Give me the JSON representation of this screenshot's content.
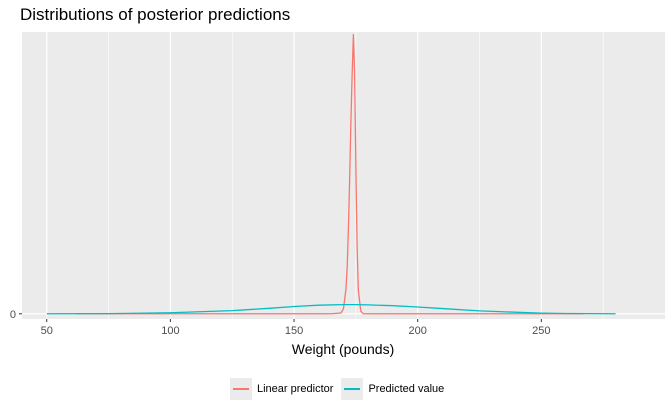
{
  "chart_data": {
    "type": "line",
    "title": "Distributions of posterior predictions",
    "xlabel": "Weight (pounds)",
    "ylabel": "",
    "xlim": [
      40,
      300
    ],
    "ylim": [
      -0.002,
      0.108
    ],
    "x_ticks": [
      50,
      100,
      150,
      200,
      250
    ],
    "y_ticks": [
      0
    ],
    "y_tick_labels": [
      "0"
    ],
    "grid": true,
    "legend_position": "bottom",
    "series": [
      {
        "name": "Linear predictor",
        "color": "#F8766D",
        "x": [
          62,
          150,
          165,
          169,
          170,
          171,
          171.5,
          172,
          172.5,
          173,
          173.5,
          174,
          174.5,
          175,
          175.5,
          176,
          177,
          178,
          185,
          267
        ],
        "values": [
          0,
          0,
          0,
          0.0003,
          0.002,
          0.0095,
          0.018,
          0.033,
          0.052,
          0.074,
          0.092,
          0.107,
          0.092,
          0.056,
          0.026,
          0.009,
          0.001,
          0,
          0,
          0
        ]
      },
      {
        "name": "Predicted value",
        "color": "#00BFC4",
        "x": [
          50,
          75,
          100,
          125,
          140,
          150,
          160,
          170,
          175,
          180,
          190,
          200,
          210,
          225,
          250,
          260,
          280
        ],
        "values": [
          0,
          5e-05,
          0.0004,
          0.0012,
          0.0021,
          0.0028,
          0.0033,
          0.0035,
          0.0035,
          0.0034,
          0.0031,
          0.0026,
          0.002,
          0.0011,
          0.00025,
          0.0001,
          0
        ]
      }
    ]
  }
}
